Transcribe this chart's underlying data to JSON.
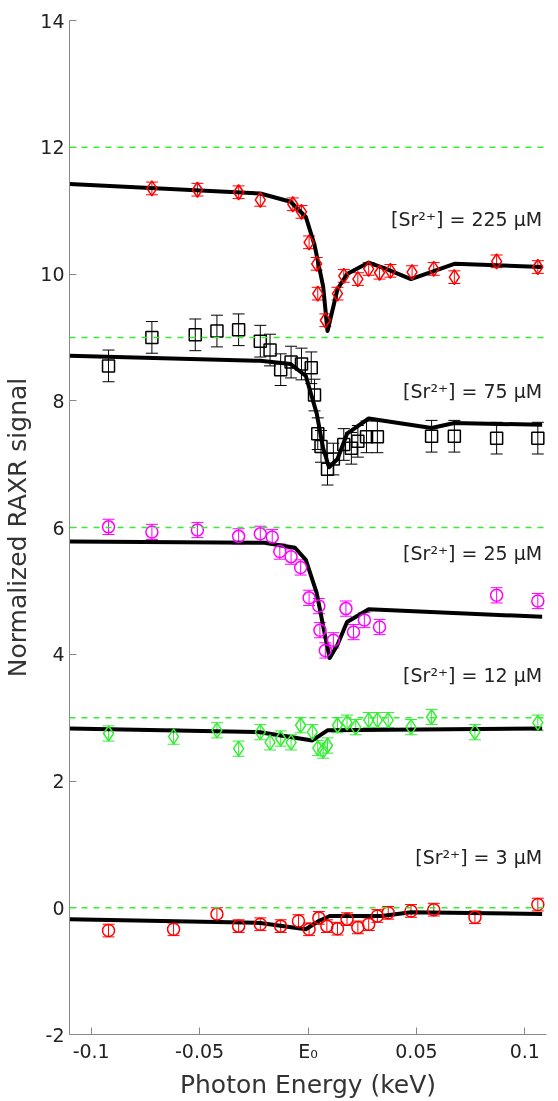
{
  "chart_data": {
    "type": "scatter",
    "xlabel": "Photon Energy (keV)",
    "ylabel": "Normalized RAXR signal",
    "xlim": [
      -0.11,
      0.11
    ],
    "ylim": [
      -2,
      14
    ],
    "xticks": [
      -0.1,
      -0.05,
      {
        "value": 0,
        "label": "E₀"
      },
      0.05,
      0.1
    ],
    "yticks": [
      -2,
      0,
      2,
      4,
      6,
      8,
      10,
      12,
      14
    ],
    "grid": false,
    "line_style": "solid",
    "ref_lines": [
      {
        "axis": "y",
        "value": 0,
        "color": "#33ee33",
        "line_style": "dashed"
      },
      {
        "axis": "y",
        "value": 3,
        "color": "#33ee33",
        "line_style": "dashed"
      },
      {
        "axis": "y",
        "value": 6,
        "color": "#33ee33",
        "line_style": "dashed"
      },
      {
        "axis": "y",
        "value": 9,
        "color": "#33ee33",
        "line_style": "dashed"
      },
      {
        "axis": "y",
        "value": 12,
        "color": "#33ee33",
        "line_style": "dashed"
      }
    ],
    "series": [
      {
        "name": "[Sr²⁺] = 225 µM",
        "marker": "diamond",
        "color": "#ff0000",
        "x": [
          -0.072,
          -0.051,
          -0.032,
          -0.022,
          -0.007,
          -0.003,
          0.0005,
          0.004,
          0.0045,
          0.008,
          0.0136,
          0.0165,
          0.023,
          0.028,
          0.033,
          0.038,
          0.048,
          0.058,
          0.0675,
          0.087,
          0.106
        ],
        "values": [
          11.35,
          11.33,
          11.29,
          11.17,
          11.1,
          10.98,
          10.5,
          10.16,
          9.69,
          9.27,
          9.69,
          9.97,
          9.92,
          10.08,
          10.02,
          10.05,
          10.03,
          10.08,
          9.95,
          10.2,
          10.11
        ],
        "errors": [
          0.1,
          0.1,
          0.1,
          0.1,
          0.1,
          0.1,
          0.1,
          0.1,
          0.1,
          0.1,
          0.1,
          0.1,
          0.1,
          0.1,
          0.1,
          0.1,
          0.1,
          0.1,
          0.1,
          0.1,
          0.1
        ]
      },
      {
        "type": "line",
        "color": "#000000",
        "x": [
          -0.11,
          -0.022,
          -0.008,
          -0.001,
          0.003,
          0.007,
          0.009,
          0.0136,
          0.018,
          0.028,
          0.036,
          0.0475,
          0.0675,
          0.108
        ],
        "values": [
          11.42,
          11.27,
          11.14,
          10.9,
          10.46,
          9.8,
          9.1,
          9.76,
          10.0,
          10.18,
          10.08,
          9.92,
          10.16,
          10.11
        ]
      },
      {
        "name": "[Sr²⁺] = 75 µM",
        "marker": "square",
        "color": "#000000",
        "x": [
          -0.092,
          -0.072,
          -0.052,
          -0.042,
          -0.032,
          -0.022,
          -0.0175,
          -0.0126,
          -0.0078,
          -0.003,
          0.0015,
          0.003,
          0.0045,
          0.006,
          0.009,
          0.0117,
          0.0165,
          0.02,
          0.023,
          0.027,
          0.032,
          0.057,
          0.0675,
          0.087,
          0.106
        ],
        "values": [
          8.55,
          9.0,
          9.04,
          9.1,
          9.12,
          8.94,
          8.8,
          8.49,
          8.61,
          8.58,
          8.52,
          8.09,
          7.48,
          7.28,
          6.92,
          7.08,
          7.31,
          7.25,
          7.36,
          7.43,
          7.43,
          7.44,
          7.44,
          7.41,
          7.41
        ],
        "errors": [
          0.25,
          0.25,
          0.25,
          0.25,
          0.25,
          0.25,
          0.25,
          0.25,
          0.25,
          0.25,
          0.25,
          0.25,
          0.25,
          0.25,
          0.25,
          0.25,
          0.25,
          0.25,
          0.25,
          0.25,
          0.25,
          0.25,
          0.25,
          0.25,
          0.25
        ]
      },
      {
        "type": "line",
        "color": "#000000",
        "x": [
          -0.11,
          -0.022,
          -0.008,
          -0.001,
          0.004,
          0.007,
          0.0097,
          0.0136,
          0.018,
          0.028,
          0.057,
          0.0675,
          0.108
        ],
        "values": [
          8.71,
          8.63,
          8.58,
          8.39,
          7.8,
          7.25,
          6.95,
          7.08,
          7.48,
          7.72,
          7.57,
          7.65,
          7.62
        ]
      },
      {
        "name": "[Sr²⁺] = 25 µM",
        "marker": "circle",
        "color": "#ff00ff",
        "x": [
          -0.092,
          -0.072,
          -0.051,
          -0.032,
          -0.022,
          -0.0165,
          -0.013,
          -0.0078,
          -0.0034,
          0.0005,
          0.005,
          0.0055,
          0.008,
          0.0117,
          0.0175,
          0.021,
          0.026,
          0.033,
          0.087,
          0.106
        ],
        "values": [
          6.01,
          5.93,
          5.96,
          5.86,
          5.9,
          5.85,
          5.62,
          5.54,
          5.37,
          4.89,
          4.76,
          4.38,
          4.06,
          4.22,
          4.72,
          4.35,
          4.54,
          4.43,
          4.93,
          4.84
        ],
        "errors": [
          0.12,
          0.12,
          0.12,
          0.12,
          0.12,
          0.12,
          0.12,
          0.12,
          0.12,
          0.12,
          0.12,
          0.12,
          0.12,
          0.12,
          0.12,
          0.12,
          0.12,
          0.12,
          0.12,
          0.12
        ]
      },
      {
        "type": "line",
        "color": "#000000",
        "x": [
          -0.11,
          -0.02,
          -0.006,
          -0.001,
          0.004,
          0.008,
          0.01,
          0.0136,
          0.018,
          0.028,
          0.108
        ],
        "values": [
          5.78,
          5.76,
          5.68,
          5.49,
          4.97,
          4.27,
          3.94,
          4.15,
          4.51,
          4.71,
          4.59
        ]
      },
      {
        "name": "[Sr²⁺] = 12 µM",
        "marker": "diamond",
        "color": "#33ee33",
        "x": [
          -0.092,
          -0.062,
          -0.042,
          -0.032,
          -0.022,
          -0.0175,
          -0.0126,
          -0.0078,
          -0.0034,
          0.002,
          0.0045,
          0.007,
          0.009,
          0.0136,
          0.018,
          0.022,
          0.028,
          0.032,
          0.037,
          0.0475,
          0.057,
          0.077,
          0.106
        ],
        "values": [
          2.75,
          2.7,
          2.8,
          2.51,
          2.77,
          2.61,
          2.67,
          2.61,
          2.88,
          2.77,
          2.52,
          2.48,
          2.56,
          2.88,
          2.92,
          2.85,
          2.96,
          2.96,
          2.96,
          2.85,
          3.01,
          2.77,
          2.92
        ],
        "errors": [
          0.12,
          0.12,
          0.12,
          0.12,
          0.12,
          0.12,
          0.12,
          0.12,
          0.12,
          0.12,
          0.12,
          0.12,
          0.12,
          0.12,
          0.12,
          0.12,
          0.12,
          0.12,
          0.12,
          0.12,
          0.12,
          0.12,
          0.12
        ]
      },
      {
        "type": "line",
        "color": "#000000",
        "x": [
          -0.11,
          -0.022,
          0.002,
          0.009,
          0.108
        ],
        "values": [
          2.83,
          2.77,
          2.64,
          2.8,
          2.83
        ]
      },
      {
        "name": "[Sr²⁺] = 3 µM",
        "marker": "circle",
        "color": "#ff0000",
        "x": [
          -0.092,
          -0.062,
          -0.042,
          -0.032,
          -0.022,
          -0.0126,
          -0.0044,
          0.0005,
          0.005,
          0.0087,
          0.0136,
          0.018,
          0.023,
          0.028,
          0.032,
          0.037,
          0.0475,
          0.058,
          0.077,
          0.106
        ],
        "values": [
          -0.36,
          -0.34,
          -0.1,
          -0.29,
          -0.26,
          -0.29,
          -0.21,
          -0.34,
          -0.16,
          -0.29,
          -0.33,
          -0.18,
          -0.31,
          -0.26,
          -0.13,
          -0.08,
          -0.05,
          -0.03,
          -0.15,
          0.05
        ],
        "errors": [
          0.1,
          0.1,
          0.1,
          0.1,
          0.1,
          0.1,
          0.1,
          0.1,
          0.1,
          0.1,
          0.1,
          0.1,
          0.1,
          0.1,
          0.1,
          0.1,
          0.1,
          0.1,
          0.1,
          0.1
        ]
      },
      {
        "type": "line",
        "color": "#000000",
        "x": [
          -0.11,
          -0.022,
          -0.001,
          0.005,
          0.01,
          0.034,
          0.0475,
          0.108
        ],
        "values": [
          -0.18,
          -0.24,
          -0.34,
          -0.21,
          -0.13,
          -0.13,
          -0.07,
          -0.1
        ]
      }
    ]
  }
}
